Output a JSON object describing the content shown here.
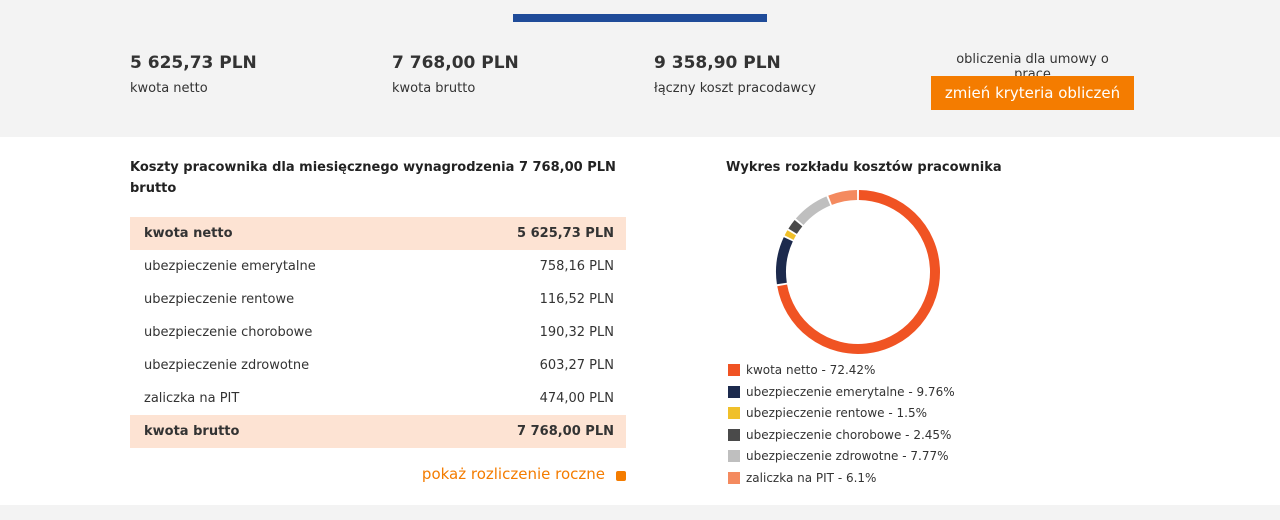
{
  "summary": [
    {
      "value": "5 625,73 PLN",
      "label": "kwota netto"
    },
    {
      "value": "7 768,00 PLN",
      "label": "kwota brutto"
    },
    {
      "value": "9 358,90 PLN",
      "label": "łączny koszt pracodawcy"
    }
  ],
  "contract": {
    "label": "obliczenia dla umowy o pracę",
    "button": "zmień kryteria obliczeń"
  },
  "table": {
    "title": "Koszty pracownika dla miesięcznego wynagrodzenia 7 768,00 PLN brutto",
    "rows": [
      [
        "kwota netto",
        "5 625,73 PLN"
      ],
      [
        "ubezpieczenie emerytalne",
        "758,16 PLN"
      ],
      [
        "ubezpieczenie rentowe",
        "116,52 PLN"
      ],
      [
        "ubezpieczenie chorobowe",
        "190,32 PLN"
      ],
      [
        "ubezpieczenie zdrowotne",
        "603,27 PLN"
      ],
      [
        "zaliczka na PIT",
        "474,00 PLN"
      ],
      [
        "kwota brutto",
        "7 768,00 PLN"
      ]
    ]
  },
  "link": "pokaż rozliczenie roczne",
  "chart_data": {
    "type": "donut",
    "title": "Wykres rozkładu kosztów pracownika",
    "labels": [
      "kwota netto - 72.42%",
      "ubezpieczenie emerytalne - 9.76%",
      "ubezpieczenie rentowe - 1.5%",
      "ubezpieczenie chorobowe - 2.45%",
      "ubezpieczenie zdrowotne - 7.77%",
      "zaliczka na PIT - 6.1%"
    ],
    "values": [
      72.42,
      9.76,
      1.5,
      2.45,
      7.77,
      6.1
    ],
    "colors": [
      "#f05323",
      "#1c2a4d",
      "#f0c02a",
      "#4a4a4a",
      "#bfbfbf",
      "#f48a5f"
    ]
  }
}
